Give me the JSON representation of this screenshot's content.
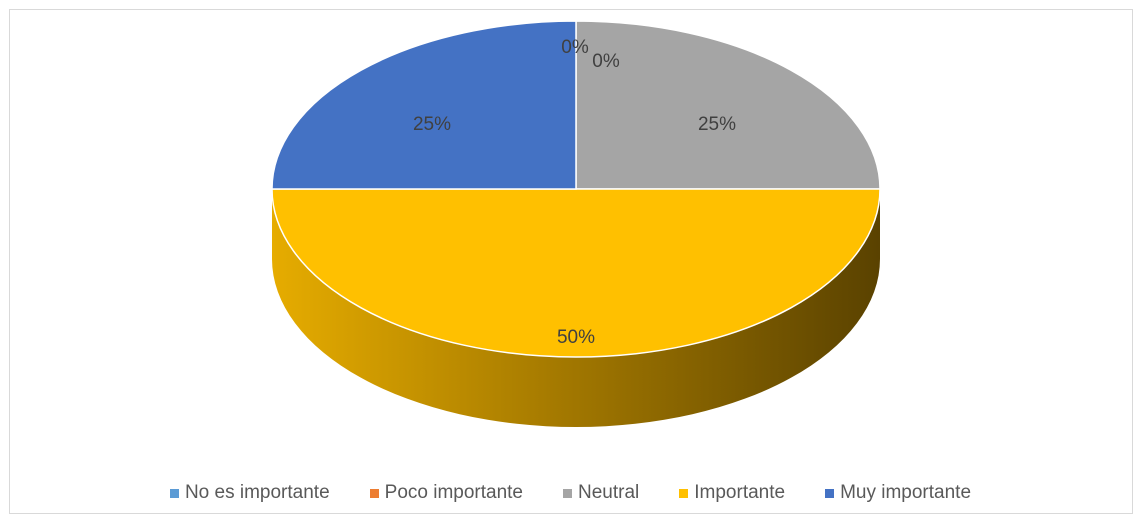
{
  "chart_data": {
    "type": "pie",
    "title": "",
    "style": "3d",
    "categories": [
      "No es importante",
      "Poco importante",
      "Neutral",
      "Importante",
      "Muy importante"
    ],
    "values": [
      0,
      0,
      25,
      50,
      25
    ],
    "data_labels": [
      "0%",
      "0%",
      "25%",
      "50%",
      "25%"
    ],
    "colors": [
      "#5b9bd5",
      "#ed7d31",
      "#a5a5a5",
      "#ffc000",
      "#4472c4"
    ],
    "legend_position": "bottom"
  },
  "legend": {
    "items": [
      {
        "label": "No es importante",
        "color": "#5b9bd5"
      },
      {
        "label": "Poco importante",
        "color": "#ed7d31"
      },
      {
        "label": "Neutral",
        "color": "#a5a5a5"
      },
      {
        "label": "Importante",
        "color": "#ffc000"
      },
      {
        "label": "Muy importante",
        "color": "#4472c4"
      }
    ]
  }
}
